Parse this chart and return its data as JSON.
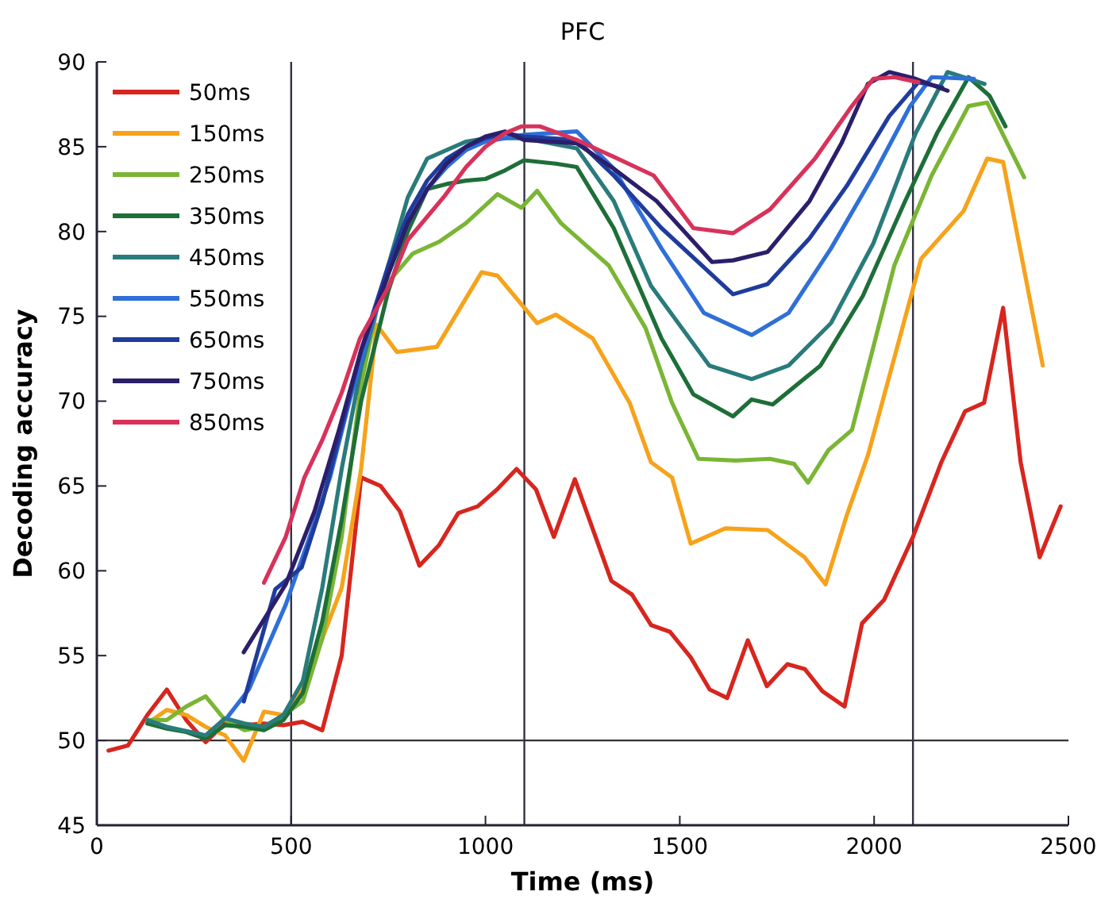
{
  "chart_data": {
    "type": "line",
    "title": "PFC",
    "xlabel": "Time (ms)",
    "ylabel": "Decoding accuracy",
    "xlim": [
      0,
      2500
    ],
    "ylim": [
      45,
      90
    ],
    "xticks": [
      0,
      500,
      1000,
      1500,
      2000,
      2500
    ],
    "yticks": [
      45,
      50,
      55,
      60,
      65,
      70,
      75,
      80,
      85,
      90
    ],
    "grid": false,
    "legend": "top left",
    "marker": "none",
    "line_style": "solid",
    "ref_lines": [
      {
        "axis": "x",
        "value": 500,
        "color": "#333344"
      },
      {
        "axis": "x",
        "value": 1100,
        "color": "#333344"
      },
      {
        "axis": "x",
        "value": 2100,
        "color": "#333344"
      },
      {
        "axis": "y",
        "value": 50,
        "color": "#333333"
      }
    ],
    "series": [
      {
        "name": "50ms",
        "color": "#d7261e",
        "x": [
          30,
          80,
          130,
          180,
          230,
          280,
          330,
          380,
          430,
          480,
          530,
          580,
          630,
          680,
          730,
          780,
          830,
          880,
          930,
          980,
          1030,
          1080,
          1130,
          1176,
          1230,
          1324,
          1377,
          1426,
          1475,
          1528,
          1577,
          1622,
          1675,
          1724,
          1777,
          1822,
          1867,
          1924,
          1969,
          2026,
          2100,
          2173,
          2234,
          2283,
          2332,
          2377,
          2426,
          2480
        ],
        "values": [
          49.4,
          49.7,
          51.5,
          53.0,
          51.2,
          49.9,
          51.0,
          50.9,
          51.0,
          50.9,
          51.1,
          50.6,
          55.0,
          65.5,
          65.0,
          63.5,
          60.3,
          61.5,
          63.4,
          63.8,
          64.8,
          66.0,
          64.8,
          62.0,
          65.4,
          59.4,
          58.6,
          56.8,
          56.4,
          54.9,
          53.0,
          52.5,
          55.9,
          53.2,
          54.5,
          54.2,
          52.9,
          52.0,
          56.9,
          58.3,
          62.0,
          66.4,
          69.4,
          69.9,
          75.5,
          66.4,
          60.8,
          63.8
        ]
      },
      {
        "name": "150ms",
        "color": "#f7a21b",
        "x": [
          130,
          180,
          230,
          280,
          330,
          378,
          430,
          480,
          530,
          580,
          630,
          680,
          720,
          772,
          875,
          990,
          1031,
          1133,
          1181,
          1276,
          1371,
          1426,
          1480,
          1528,
          1617,
          1726,
          1821,
          1875,
          1930,
          1984,
          2121,
          2230,
          2291,
          2332,
          2434
        ],
        "values": [
          51.0,
          51.8,
          51.5,
          50.8,
          50.3,
          48.8,
          51.7,
          51.5,
          53.0,
          56.0,
          59.0,
          66.0,
          74.5,
          72.9,
          73.2,
          77.6,
          77.4,
          74.6,
          75.1,
          73.7,
          69.9,
          66.4,
          65.5,
          61.6,
          62.5,
          62.4,
          60.8,
          59.2,
          63.3,
          66.8,
          78.4,
          81.2,
          84.3,
          84.1,
          72.1
        ]
      },
      {
        "name": "250ms",
        "color": "#7ab534",
        "x": [
          130,
          180,
          230,
          280,
          330,
          380,
          430,
          480,
          530,
          580,
          630,
          680,
          730,
          813,
          881,
          950,
          1031,
          1092,
          1133,
          1194,
          1317,
          1412,
          1480,
          1548,
          1644,
          1732,
          1794,
          1830,
          1882,
          1943,
          2052,
          2148,
          2243,
          2291,
          2386
        ],
        "values": [
          51.2,
          51.2,
          52.0,
          52.6,
          51.2,
          50.6,
          50.8,
          51.5,
          52.3,
          56.0,
          62.0,
          71.0,
          76.5,
          78.7,
          79.4,
          80.5,
          82.2,
          81.4,
          82.4,
          80.5,
          78.0,
          74.3,
          69.9,
          66.6,
          66.5,
          66.6,
          66.3,
          65.2,
          67.1,
          68.3,
          78.0,
          83.3,
          87.4,
          87.6,
          83.2
        ]
      },
      {
        "name": "350ms",
        "color": "#1e6e38",
        "x": [
          130,
          180,
          230,
          280,
          330,
          380,
          430,
          480,
          530,
          580,
          630,
          680,
          750,
          800,
          850,
          900,
          950,
          1000,
          1050,
          1099,
          1181,
          1235,
          1330,
          1453,
          1535,
          1637,
          1685,
          1739,
          1862,
          1971,
          2080,
          2162,
          2243,
          2297,
          2338
        ],
        "values": [
          51.0,
          50.7,
          50.5,
          50.1,
          50.9,
          50.8,
          50.6,
          51.2,
          52.8,
          57.0,
          63.0,
          70.0,
          76.5,
          80.0,
          82.5,
          82.8,
          83.0,
          83.1,
          83.6,
          84.2,
          84.0,
          83.8,
          80.2,
          73.7,
          70.4,
          69.1,
          70.1,
          69.8,
          72.1,
          76.2,
          81.8,
          85.8,
          89.1,
          88.0,
          86.2
        ]
      },
      {
        "name": "450ms",
        "color": "#2a7b7b",
        "x": [
          130,
          180,
          280,
          330,
          380,
          430,
          480,
          530,
          580,
          630,
          680,
          750,
          800,
          850,
          900,
          950,
          1000,
          1100,
          1235,
          1330,
          1426,
          1576,
          1685,
          1780,
          1889,
          1998,
          2107,
          2189,
          2284
        ],
        "values": [
          51.2,
          50.8,
          50.3,
          51.3,
          51.0,
          50.8,
          51.5,
          53.5,
          59.0,
          66.0,
          72.0,
          78.0,
          82.0,
          84.3,
          84.8,
          85.3,
          85.5,
          85.5,
          84.9,
          81.8,
          76.8,
          72.1,
          71.3,
          72.1,
          74.6,
          79.3,
          85.8,
          89.4,
          88.7
        ]
      },
      {
        "name": "550ms",
        "color": "#2f6fd8",
        "x": [
          337,
          391,
          486,
          540,
          600,
          650,
          700,
          750,
          800,
          850,
          900,
          950,
          1000,
          1099,
          1235,
          1330,
          1453,
          1562,
          1685,
          1780,
          1889,
          1998,
          2093,
          2148,
          2257
        ],
        "values": [
          51.4,
          53.0,
          58.0,
          61.5,
          65.5,
          70.0,
          74.0,
          77.5,
          80.5,
          82.5,
          83.8,
          84.8,
          85.3,
          85.7,
          85.9,
          83.7,
          79.0,
          75.2,
          73.9,
          75.2,
          79.0,
          83.3,
          87.4,
          89.1,
          89.0
        ]
      },
      {
        "name": "650ms",
        "color": "#1f3c9c",
        "x": [
          378,
          459,
          527,
          580,
          630,
          680,
          750,
          800,
          850,
          900,
          950,
          1000,
          1050,
          1099,
          1235,
          1330,
          1453,
          1637,
          1726,
          1834,
          1930,
          2039,
          2114,
          2175
        ],
        "values": [
          52.3,
          58.9,
          60.2,
          64.0,
          68.5,
          73.0,
          78.0,
          81.0,
          83.0,
          84.3,
          85.0,
          85.5,
          85.8,
          85.6,
          85.4,
          83.3,
          80.2,
          76.3,
          76.9,
          79.6,
          82.7,
          86.8,
          88.8,
          88.5
        ]
      },
      {
        "name": "750ms",
        "color": "#2b1e6b",
        "x": [
          378,
          486,
          560,
          623,
          680,
          750,
          800,
          850,
          900,
          950,
          1000,
          1050,
          1099,
          1235,
          1330,
          1440,
          1583,
          1637,
          1726,
          1834,
          1916,
          1984,
          2039,
          2107,
          2189
        ],
        "values": [
          55.2,
          59.2,
          63.5,
          68.3,
          73.0,
          77.5,
          80.5,
          82.5,
          84.0,
          85.0,
          85.6,
          85.9,
          85.4,
          85.2,
          83.7,
          81.8,
          78.2,
          78.3,
          78.8,
          81.8,
          85.2,
          88.7,
          89.4,
          89.0,
          88.3
        ]
      },
      {
        "name": "850ms",
        "color": "#d8325a",
        "x": [
          430,
          486,
          534,
          580,
          630,
          677,
          752,
          800,
          895,
          950,
          1000,
          1050,
          1093,
          1140,
          1235,
          1330,
          1433,
          1535,
          1637,
          1732,
          1848,
          1943,
          1998,
          2052,
          2114
        ],
        "values": [
          59.3,
          62.0,
          65.5,
          67.7,
          70.5,
          73.7,
          76.8,
          79.5,
          82.1,
          83.8,
          85.0,
          85.8,
          86.2,
          86.2,
          85.4,
          84.4,
          83.3,
          80.2,
          79.9,
          81.3,
          84.3,
          87.4,
          89.0,
          89.1,
          88.8
        ]
      }
    ]
  }
}
